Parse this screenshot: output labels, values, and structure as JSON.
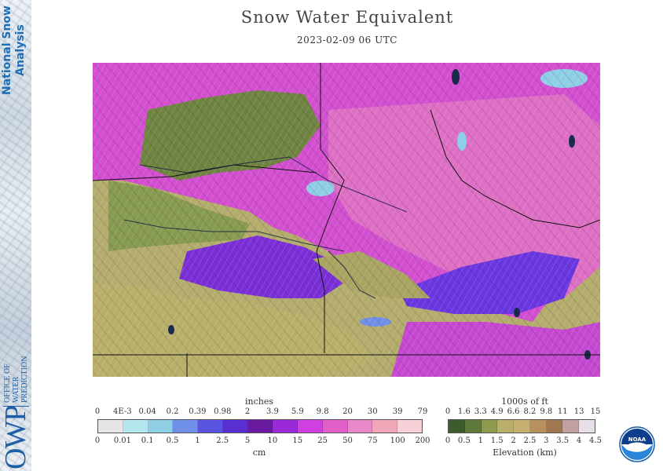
{
  "title": "Snow Water Equivalent",
  "subtitle": "2023-02-09 06 UTC",
  "branding": {
    "nsa_line1": "National Snow",
    "nsa_line2": "Analysis",
    "owp_letters": "OWP",
    "owp_line1": "OFFICE OF",
    "owp_line2": "WATER",
    "owp_line3": "PREDICTION",
    "noaa": "NOAA"
  },
  "swe_legend": {
    "top_title": "inches",
    "bottom_title": "cm",
    "inches": [
      "0",
      "4E-3",
      "0.04",
      "0.2",
      "0.39",
      "0.98",
      "2",
      "3.9",
      "5.9",
      "9.8",
      "20",
      "30",
      "39",
      "79"
    ],
    "cm": [
      "0",
      "0.01",
      "0.1",
      "0.5",
      "1",
      "2.5",
      "5",
      "10",
      "15",
      "25",
      "50",
      "75",
      "100",
      "200"
    ],
    "colors": [
      "#e6e6e6",
      "#b4e6ee",
      "#8ecfe6",
      "#6f8fe8",
      "#5a55e0",
      "#5a2fcf",
      "#6a1a9e",
      "#9a2ad8",
      "#d040e0",
      "#e060c8",
      "#e888c8",
      "#f0a8b8",
      "#f8d0d8"
    ]
  },
  "elevation_legend": {
    "top_title": "1000s of ft",
    "bottom_title": "Elevation (km)",
    "feet": [
      "0",
      "1.6",
      "3.3",
      "4.9",
      "6.6",
      "8.2",
      "9.8",
      "11",
      "13",
      "15"
    ],
    "km": [
      "0",
      "0.5",
      "1",
      "1.5",
      "2",
      "2.5",
      "3",
      "3.5",
      "4",
      "4.5"
    ],
    "colors": [
      "#3d5c2e",
      "#5e7a3a",
      "#8d9a4e",
      "#b8b06a",
      "#c8b070",
      "#b89060",
      "#a07850",
      "#c0a0a0",
      "#e8e0e8"
    ]
  }
}
